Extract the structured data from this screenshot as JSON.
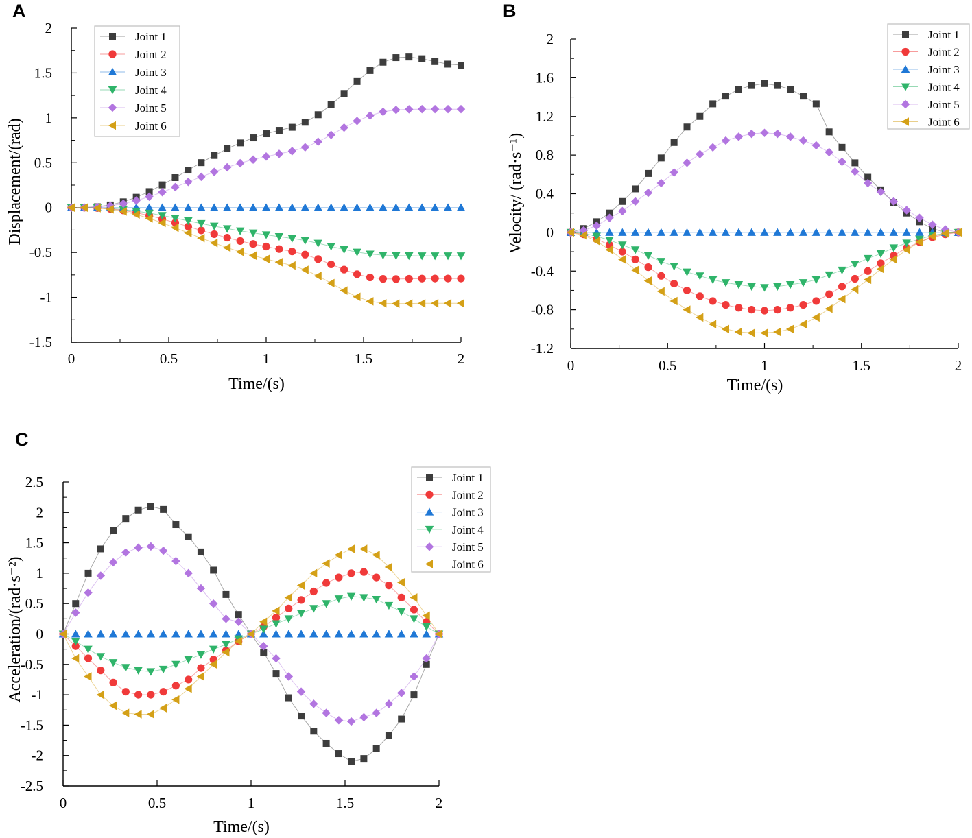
{
  "figure": {
    "colors": {
      "joint1": "#3d3d3d",
      "joint2": "#f03a3a",
      "joint3": "#1f78d6",
      "joint4": "#2fb46a",
      "joint5": "#b275e0",
      "joint6": "#d4a017",
      "axis": "#000000",
      "legend_border": "#bdbdbd",
      "line": "#b8b8b8"
    }
  },
  "chart_data": [
    {
      "panel": "A",
      "type": "line",
      "title": "",
      "xlabel": "Time/(s)",
      "ylabel": "Displacement/(rad)",
      "xlim": [
        0,
        2
      ],
      "ylim": [
        -1.5,
        2
      ],
      "xticks": [
        0,
        0.5,
        1,
        1.5,
        2
      ],
      "xtick_labels": [
        "0",
        "0.5",
        "1",
        "1.5",
        "2"
      ],
      "yticks": [
        -1.5,
        -1,
        -0.5,
        0,
        0.5,
        1,
        1.5,
        2
      ],
      "ytick_labels": [
        "-1.5",
        "-1",
        "-0.5",
        "0",
        "0.5",
        "1",
        "1.5",
        "2"
      ],
      "legend_position": "top-left",
      "x": [
        0,
        0.0667,
        0.1333,
        0.2,
        0.2667,
        0.3333,
        0.4,
        0.4667,
        0.5333,
        0.6,
        0.6667,
        0.7333,
        0.8,
        0.8667,
        0.9333,
        1,
        1.0667,
        1.1333,
        1.2,
        1.2667,
        1.3333,
        1.4,
        1.4667,
        1.5333,
        1.6,
        1.6667,
        1.7333,
        1.8,
        1.8667,
        1.9333,
        2
      ],
      "series": [
        {
          "name": "Joint 1",
          "marker": "square",
          "values": [
            0,
            0.001,
            0.009,
            0.029,
            0.064,
            0.115,
            0.178,
            0.253,
            0.334,
            0.418,
            0.501,
            0.581,
            0.655,
            0.721,
            0.777,
            0.823,
            0.861,
            0.895,
            0.951,
            1.035,
            1.145,
            1.272,
            1.405,
            1.527,
            1.62,
            1.671,
            1.678,
            1.659,
            1.627,
            1.599,
            1.587
          ]
        },
        {
          "name": "Joint 2",
          "marker": "circle",
          "values": [
            0,
            -0.0005,
            -0.004,
            -0.014,
            -0.032,
            -0.057,
            -0.089,
            -0.127,
            -0.168,
            -0.211,
            -0.254,
            -0.296,
            -0.335,
            -0.372,
            -0.405,
            -0.434,
            -0.462,
            -0.489,
            -0.524,
            -0.574,
            -0.632,
            -0.691,
            -0.742,
            -0.778,
            -0.794,
            -0.796,
            -0.793,
            -0.791,
            -0.79,
            -0.79,
            -0.79
          ]
        },
        {
          "name": "Joint 3",
          "marker": "triangle-up",
          "values": [
            0,
            0,
            0,
            0,
            0,
            0,
            0,
            0,
            0,
            0,
            0,
            0,
            0,
            0,
            0,
            0,
            0,
            0,
            0,
            0,
            0,
            0,
            0,
            0,
            0,
            0,
            0,
            0,
            0,
            0,
            0
          ]
        },
        {
          "name": "Joint 4",
          "marker": "triangle-down",
          "values": [
            0,
            -0.0003,
            -0.003,
            -0.01,
            -0.022,
            -0.04,
            -0.062,
            -0.088,
            -0.117,
            -0.147,
            -0.177,
            -0.206,
            -0.234,
            -0.259,
            -0.282,
            -0.303,
            -0.323,
            -0.343,
            -0.366,
            -0.397,
            -0.432,
            -0.467,
            -0.496,
            -0.518,
            -0.53,
            -0.535,
            -0.537,
            -0.538,
            -0.538,
            -0.538,
            -0.538
          ]
        },
        {
          "name": "Joint 5",
          "marker": "diamond",
          "values": [
            0,
            0.0007,
            0.006,
            0.02,
            0.044,
            0.078,
            0.121,
            0.172,
            0.228,
            0.286,
            0.343,
            0.398,
            0.449,
            0.495,
            0.535,
            0.569,
            0.599,
            0.629,
            0.672,
            0.734,
            0.81,
            0.891,
            0.965,
            1.026,
            1.068,
            1.089,
            1.095,
            1.097,
            1.097,
            1.097,
            1.097
          ]
        },
        {
          "name": "Joint 6",
          "marker": "triangle-left",
          "values": [
            0,
            -0.0007,
            -0.006,
            -0.019,
            -0.043,
            -0.077,
            -0.12,
            -0.17,
            -0.225,
            -0.282,
            -0.339,
            -0.394,
            -0.446,
            -0.493,
            -0.535,
            -0.573,
            -0.609,
            -0.645,
            -0.694,
            -0.762,
            -0.842,
            -0.924,
            -0.994,
            -1.044,
            -1.066,
            -1.07,
            -1.069,
            -1.067,
            -1.066,
            -1.066,
            -1.066
          ]
        }
      ]
    },
    {
      "panel": "B",
      "type": "line",
      "title": "",
      "xlabel": "Time/(s)",
      "ylabel": "Velocity/ (rad·s⁻¹)",
      "xlim": [
        0,
        2
      ],
      "ylim": [
        -1.2,
        2
      ],
      "xticks": [
        0,
        0.5,
        1,
        1.5,
        2
      ],
      "xtick_labels": [
        "0",
        "0.5",
        "1",
        "1.5",
        "2"
      ],
      "yticks": [
        -1.2,
        -0.8,
        -0.4,
        0,
        0.4,
        0.8,
        1.2,
        1.6,
        2
      ],
      "ytick_labels": [
        "-1.2",
        "-0.8",
        "-0.4",
        "0",
        "0.4",
        "0.8",
        "1.2",
        "1.6",
        "2"
      ],
      "legend_position": "top-right",
      "x": [
        0,
        0.0667,
        0.1333,
        0.2,
        0.2667,
        0.3333,
        0.4,
        0.4667,
        0.5333,
        0.6,
        0.6667,
        0.7333,
        0.8,
        0.8667,
        0.9333,
        1,
        1.0667,
        1.1333,
        1.2,
        1.2667,
        1.3333,
        1.4,
        1.4667,
        1.5333,
        1.6,
        1.6667,
        1.7333,
        1.8,
        1.8667,
        1.9333,
        2
      ],
      "series": [
        {
          "name": "Joint 1",
          "marker": "square",
          "values": [
            0,
            0.04,
            0.11,
            0.2,
            0.32,
            0.45,
            0.61,
            0.77,
            0.93,
            1.09,
            1.2,
            1.33,
            1.41,
            1.48,
            1.52,
            1.54,
            1.52,
            1.48,
            1.41,
            1.33,
            1.04,
            0.88,
            0.72,
            0.57,
            0.44,
            0.31,
            0.2,
            0.11,
            0.04,
            0.0,
            0.0
          ]
        },
        {
          "name": "Joint 2",
          "marker": "circle",
          "values": [
            0,
            -0.02,
            -0.07,
            -0.13,
            -0.2,
            -0.28,
            -0.36,
            -0.45,
            -0.53,
            -0.6,
            -0.66,
            -0.71,
            -0.75,
            -0.78,
            -0.8,
            -0.81,
            -0.8,
            -0.78,
            -0.75,
            -0.71,
            -0.64,
            -0.56,
            -0.48,
            -0.4,
            -0.32,
            -0.24,
            -0.16,
            -0.1,
            -0.05,
            -0.02,
            0
          ]
        },
        {
          "name": "Joint 3",
          "marker": "triangle-up",
          "values": [
            0,
            0,
            0,
            0,
            0,
            0,
            0,
            0,
            0,
            0,
            0,
            0,
            0,
            0,
            0,
            0,
            0,
            0,
            0,
            0,
            0,
            0,
            0,
            0,
            0,
            0,
            0,
            0,
            0,
            0,
            0
          ]
        },
        {
          "name": "Joint 4",
          "marker": "triangle-down",
          "values": [
            0,
            -0.01,
            -0.04,
            -0.08,
            -0.13,
            -0.18,
            -0.24,
            -0.3,
            -0.35,
            -0.41,
            -0.45,
            -0.49,
            -0.52,
            -0.54,
            -0.56,
            -0.57,
            -0.56,
            -0.54,
            -0.52,
            -0.49,
            -0.44,
            -0.39,
            -0.33,
            -0.27,
            -0.22,
            -0.16,
            -0.11,
            -0.07,
            -0.03,
            -0.01,
            0
          ]
        },
        {
          "name": "Joint 5",
          "marker": "diamond",
          "values": [
            0,
            0.02,
            0.07,
            0.15,
            0.22,
            0.32,
            0.41,
            0.51,
            0.62,
            0.72,
            0.81,
            0.88,
            0.95,
            0.99,
            1.02,
            1.03,
            1.02,
            0.99,
            0.95,
            0.9,
            0.83,
            0.73,
            0.63,
            0.51,
            0.42,
            0.32,
            0.23,
            0.15,
            0.08,
            0.03,
            0
          ]
        },
        {
          "name": "Joint 6",
          "marker": "triangle-left",
          "values": [
            0,
            -0.03,
            -0.09,
            -0.18,
            -0.28,
            -0.39,
            -0.5,
            -0.61,
            -0.71,
            -0.8,
            -0.88,
            -0.95,
            -1.0,
            -1.03,
            -1.04,
            -1.04,
            -1.03,
            -1.0,
            -0.95,
            -0.88,
            -0.79,
            -0.69,
            -0.59,
            -0.49,
            -0.38,
            -0.28,
            -0.18,
            -0.1,
            -0.04,
            -0.01,
            0
          ]
        }
      ]
    },
    {
      "panel": "C",
      "type": "line",
      "title": "",
      "xlabel": "Time/(s)",
      "ylabel": "Acceleration/(rad·s⁻²)",
      "xlim": [
        0,
        2
      ],
      "ylim": [
        -2.5,
        2.5
      ],
      "xticks": [
        0,
        0.5,
        1,
        1.5,
        2
      ],
      "xtick_labels": [
        "0",
        "0.5",
        "1",
        "1.5",
        "2"
      ],
      "yticks": [
        -2.5,
        -2,
        -1.5,
        -1,
        -0.5,
        0,
        0.5,
        1,
        1.5,
        2,
        2.5
      ],
      "ytick_labels": [
        "-2.5",
        "-2",
        "-1.5",
        "-1",
        "-0.5",
        "0",
        "0.5",
        "1",
        "1.5",
        "2",
        "2.5"
      ],
      "legend_position": "top-right",
      "x": [
        0,
        0.0667,
        0.1333,
        0.2,
        0.2667,
        0.3333,
        0.4,
        0.4667,
        0.5333,
        0.6,
        0.6667,
        0.7333,
        0.8,
        0.8667,
        0.9333,
        1,
        1.0667,
        1.1333,
        1.2,
        1.2667,
        1.3333,
        1.4,
        1.4667,
        1.5333,
        1.6,
        1.6667,
        1.7333,
        1.8,
        1.8667,
        1.9333,
        2
      ],
      "series": [
        {
          "name": "Joint 1",
          "marker": "square",
          "values": [
            0,
            0.5,
            1.0,
            1.4,
            1.7,
            1.9,
            2.04,
            2.1,
            2.05,
            1.8,
            1.6,
            1.35,
            1.05,
            0.65,
            0.32,
            0,
            -0.3,
            -0.65,
            -1.05,
            -1.35,
            -1.6,
            -1.8,
            -1.97,
            -2.1,
            -2.05,
            -1.89,
            -1.67,
            -1.4,
            -1.0,
            -0.5,
            0
          ]
        },
        {
          "name": "Joint 2",
          "marker": "circle",
          "values": [
            0,
            -0.2,
            -0.4,
            -0.6,
            -0.8,
            -0.95,
            -1.0,
            -1.0,
            -0.95,
            -0.85,
            -0.75,
            -0.56,
            -0.42,
            -0.27,
            -0.12,
            0,
            0.12,
            0.27,
            0.42,
            0.56,
            0.7,
            0.84,
            0.93,
            1.0,
            1.02,
            0.93,
            0.8,
            0.6,
            0.4,
            0.2,
            0
          ]
        },
        {
          "name": "Joint 3",
          "marker": "triangle-up",
          "values": [
            0,
            0,
            0,
            0,
            0,
            0,
            0,
            0,
            0,
            0,
            0,
            0,
            0,
            0,
            0,
            0,
            0,
            0,
            0,
            0,
            0,
            0,
            0,
            0,
            0,
            0,
            0,
            0,
            0,
            0,
            0
          ]
        },
        {
          "name": "Joint 4",
          "marker": "triangle-down",
          "values": [
            0,
            -0.12,
            -0.25,
            -0.37,
            -0.47,
            -0.55,
            -0.6,
            -0.62,
            -0.58,
            -0.5,
            -0.42,
            -0.34,
            -0.25,
            -0.17,
            -0.08,
            0,
            0.08,
            0.17,
            0.25,
            0.34,
            0.42,
            0.5,
            0.58,
            0.62,
            0.6,
            0.57,
            0.47,
            0.37,
            0.25,
            0.12,
            0
          ]
        },
        {
          "name": "Joint 5",
          "marker": "diamond",
          "values": [
            0,
            0.35,
            0.68,
            0.96,
            1.18,
            1.34,
            1.42,
            1.44,
            1.37,
            1.2,
            1.0,
            0.75,
            0.5,
            0.25,
            0.2,
            0,
            -0.2,
            -0.4,
            -0.7,
            -0.95,
            -1.15,
            -1.3,
            -1.42,
            -1.44,
            -1.37,
            -1.3,
            -1.15,
            -0.97,
            -0.7,
            -0.4,
            0
          ]
        },
        {
          "name": "Joint 6",
          "marker": "triangle-left",
          "values": [
            0,
            -0.4,
            -0.7,
            -1.0,
            -1.18,
            -1.3,
            -1.32,
            -1.32,
            -1.22,
            -1.08,
            -0.9,
            -0.7,
            -0.5,
            -0.3,
            -0.12,
            0,
            0.2,
            0.38,
            0.6,
            0.8,
            1.0,
            1.16,
            1.3,
            1.4,
            1.4,
            1.3,
            1.1,
            0.85,
            0.6,
            0.3,
            0
          ]
        }
      ]
    }
  ]
}
